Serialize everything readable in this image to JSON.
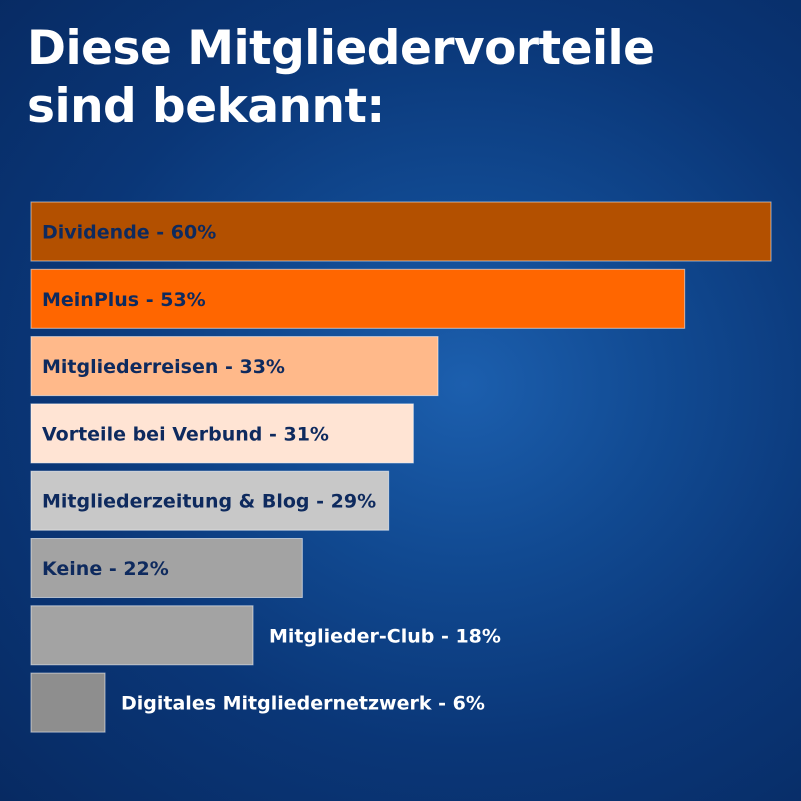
{
  "title": {
    "line1": "Diese Mitgliedervorteile",
    "line2": "sind bekannt:"
  },
  "colors": {
    "label_dark": "#0e2a5e",
    "label_light": "#ffffff"
  },
  "chart_data": {
    "type": "bar",
    "orientation": "horizontal",
    "title": "Diese Mitgliedervorteile sind bekannt:",
    "categories": [
      "Dividende",
      "MeinPlus",
      "Mitgliederreisen",
      "Vorteile bei Verbund",
      "Mitgliederzeitung & Blog",
      "Keine",
      "Mitglieder-Club",
      "Digitales Mitgliedernetzwerk"
    ],
    "values": [
      60,
      53,
      33,
      31,
      29,
      22,
      18,
      6
    ],
    "labels": [
      "Dividende - 60%",
      "MeinPlus - 53%",
      "Mitgliederreisen - 33%",
      "Vorteile bei Verbund - 31%",
      "Mitgliederzeitung & Blog - 29%",
      "Keine - 22%",
      "Mitglieder-Club - 18%",
      "Digitales Mitgliedernetzwerk - 6%"
    ],
    "bar_colors": [
      "#b35000",
      "#ff6600",
      "#ffb98a",
      "#ffe4d4",
      "#c8c8c8",
      "#a3a3a3",
      "#a3a3a3",
      "#8e8e8e"
    ],
    "label_inside": [
      true,
      true,
      true,
      true,
      true,
      true,
      false,
      false
    ],
    "unit": "%",
    "xlim": [
      0,
      60
    ],
    "grid": false,
    "legend": "none"
  }
}
